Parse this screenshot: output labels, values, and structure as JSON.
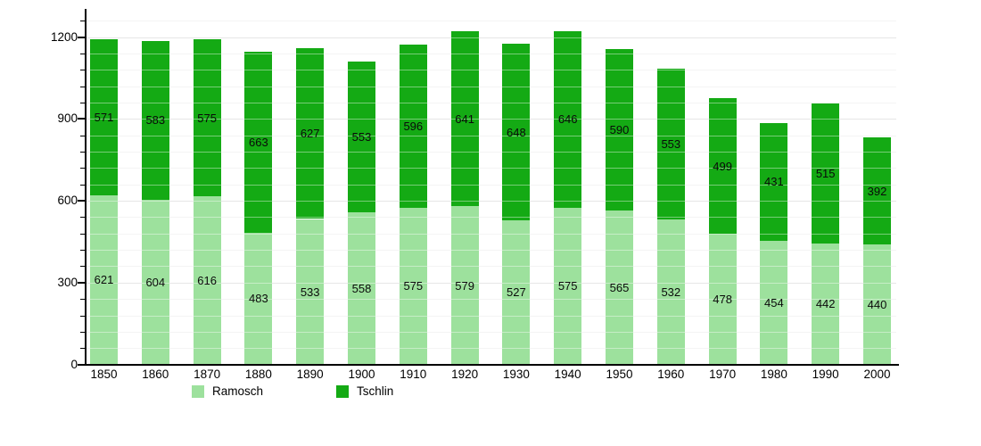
{
  "chart_data": {
    "type": "bar",
    "stacked": true,
    "title": "",
    "xlabel": "",
    "ylabel": "",
    "categories": [
      "1850",
      "1860",
      "1870",
      "1880",
      "1890",
      "1900",
      "1910",
      "1920",
      "1930",
      "1940",
      "1950",
      "1960",
      "1970",
      "1980",
      "1990",
      "2000"
    ],
    "series": [
      {
        "name": "Ramosch",
        "color": "#9de19d",
        "values": [
          621,
          604,
          616,
          483,
          533,
          558,
          575,
          579,
          527,
          575,
          565,
          532,
          478,
          454,
          442,
          440
        ]
      },
      {
        "name": "Tschlin",
        "color": "#14aa14",
        "values": [
          571,
          583,
          575,
          663,
          627,
          553,
          596,
          641,
          648,
          646,
          590,
          553,
          499,
          431,
          515,
          392
        ]
      }
    ],
    "ylim": [
      0,
      1305
    ],
    "y_major_ticks": [
      0,
      300,
      600,
      900,
      1200
    ],
    "y_minor_step": 60,
    "y_gridline_max": 1260,
    "grid": true,
    "value_labels": true,
    "legend_position": "bottom"
  },
  "style": {
    "minor_grid_color": "#ededed",
    "major_grid_color": "#d5d5d5",
    "axis_color": "#000000"
  }
}
